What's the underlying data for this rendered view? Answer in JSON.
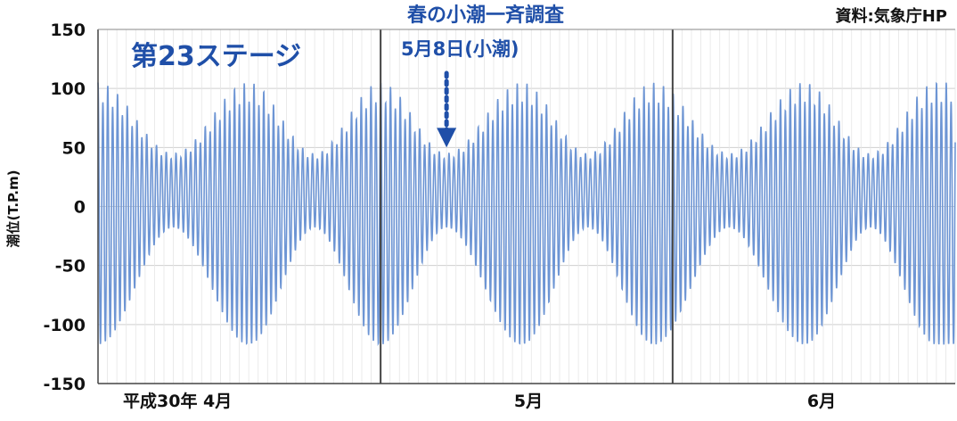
{
  "chart_data": {
    "type": "line",
    "title": "春の小潮一斉調査",
    "source": "資料:気象庁HP",
    "stage_label": "第23ステージ",
    "ylabel": "潮位(T.P.m)",
    "ylim": [
      -150,
      150
    ],
    "y_ticks": [
      "150",
      "100",
      "50",
      "0",
      "-50",
      "-100",
      "-150"
    ],
    "x_period_labels": [
      "平成30年 4月",
      "5月",
      "6月"
    ],
    "grid": true,
    "annotation": {
      "label": "5月8日(小潮)",
      "date": "2018-05-08",
      "event": "小潮",
      "arrow_tip_value": 50
    },
    "series": [
      {
        "type": "line",
        "color": "#6d95d4",
        "start_date": "2018-04-01",
        "end_date": "2018-06-30",
        "description": "semidiurnal tide, spring-neap modulated",
        "spring_tide_dates": [
          "2018-04-01",
          "2018-04-17",
          "2018-05-01",
          "2018-05-16",
          "2018-05-30",
          "2018-06-15",
          "2018-06-29"
        ],
        "neap_tide_dates": [
          "2018-04-09",
          "2018-04-24",
          "2018-05-08",
          "2018-05-23",
          "2018-06-07",
          "2018-06-22"
        ],
        "spring_range": [
          -125,
          105
        ],
        "neap_range": [
          -20,
          45
        ]
      }
    ]
  }
}
